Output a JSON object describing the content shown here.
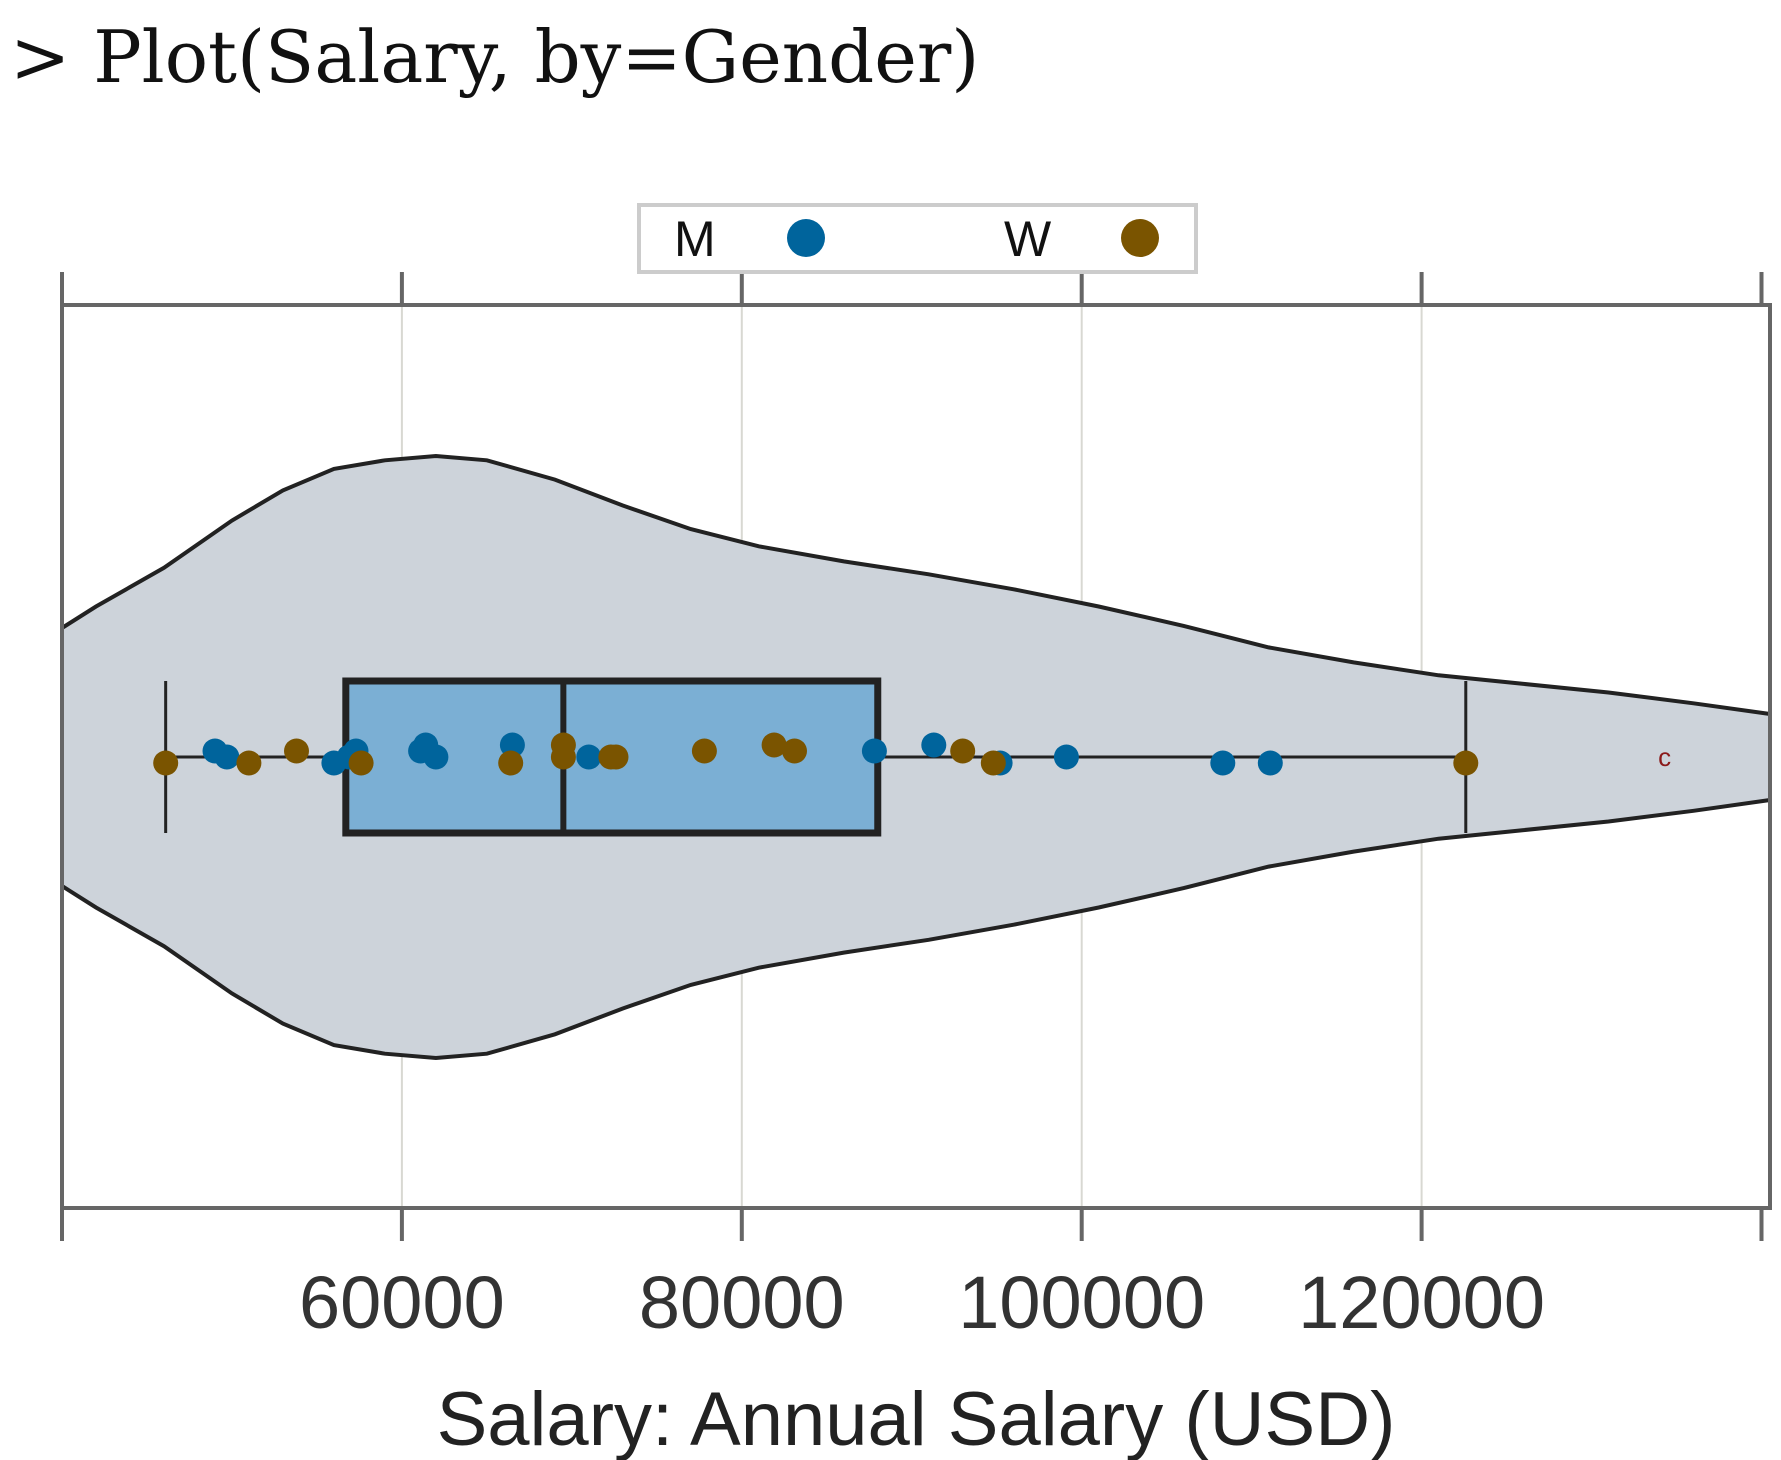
{
  "console": {
    "command": "> Plot(Salary, by=Gender)"
  },
  "chart_data": {
    "type": "violin-box-scatter",
    "xlabel": "Salary: Annual Salary (USD)",
    "ylabel": "",
    "xlim": [
      40000,
      140500
    ],
    "xticks": [
      40000,
      60000,
      80000,
      100000,
      120000,
      140000
    ],
    "xtick_labels": [
      "60000",
      "80000",
      "100000",
      "120000"
    ],
    "xtick_label_values": [
      60000,
      80000,
      100000,
      120000
    ],
    "grid": true,
    "legend": {
      "position": "top-center",
      "entries": [
        {
          "label": "M",
          "color": "#00649c"
        },
        {
          "label": "W",
          "color": "#7a5400"
        }
      ]
    },
    "box": {
      "whisker_low": 46100,
      "q1": 56700,
      "median": 69500,
      "q3": 88000,
      "whisker_high": 122600,
      "fill": "#7bafd4"
    },
    "outlier": {
      "value": 134300,
      "label": "c"
    },
    "violin": {
      "fill": "#cdd3da",
      "profile": [
        [
          40000,
          0.6
        ],
        [
          42000,
          0.7
        ],
        [
          46000,
          0.88
        ],
        [
          50000,
          1.1
        ],
        [
          53000,
          1.24
        ],
        [
          56000,
          1.34
        ],
        [
          59000,
          1.38
        ],
        [
          62000,
          1.4
        ],
        [
          65000,
          1.38
        ],
        [
          69000,
          1.29
        ],
        [
          73000,
          1.17
        ],
        [
          77000,
          1.06
        ],
        [
          81000,
          0.98
        ],
        [
          86000,
          0.91
        ],
        [
          91000,
          0.85
        ],
        [
          96000,
          0.78
        ],
        [
          101000,
          0.7
        ],
        [
          106000,
          0.61
        ],
        [
          111000,
          0.51
        ],
        [
          116000,
          0.44
        ],
        [
          121000,
          0.38
        ],
        [
          126000,
          0.34
        ],
        [
          131000,
          0.3
        ],
        [
          136000,
          0.25
        ],
        [
          140500,
          0.2
        ]
      ]
    },
    "series": [
      {
        "name": "M",
        "color": "#00649c",
        "values": [
          [
            49000,
            0.01
          ],
          [
            49700,
            0.0
          ],
          [
            56000,
            -0.01
          ],
          [
            56900,
            0.0
          ],
          [
            57300,
            0.01
          ],
          [
            61100,
            0.01
          ],
          [
            61400,
            0.02
          ],
          [
            62000,
            0.0
          ],
          [
            66500,
            0.02
          ],
          [
            71000,
            0.0
          ],
          [
            87800,
            0.01
          ],
          [
            91300,
            0.02
          ],
          [
            95200,
            -0.01
          ],
          [
            99100,
            0.0
          ],
          [
            108300,
            -0.01
          ],
          [
            111100,
            -0.01
          ]
        ]
      },
      {
        "name": "W",
        "color": "#7a5400",
        "values": [
          [
            46100,
            -0.01
          ],
          [
            51000,
            -0.01
          ],
          [
            53800,
            0.01
          ],
          [
            57600,
            -0.01
          ],
          [
            66400,
            -0.01
          ],
          [
            69500,
            0.0
          ],
          [
            69500,
            0.02
          ],
          [
            72300,
            0.0
          ],
          [
            72600,
            0.0
          ],
          [
            77800,
            0.01
          ],
          [
            81900,
            0.02
          ],
          [
            83100,
            0.01
          ],
          [
            93000,
            0.01
          ],
          [
            94800,
            -0.01
          ],
          [
            122600,
            -0.01
          ]
        ]
      }
    ]
  }
}
